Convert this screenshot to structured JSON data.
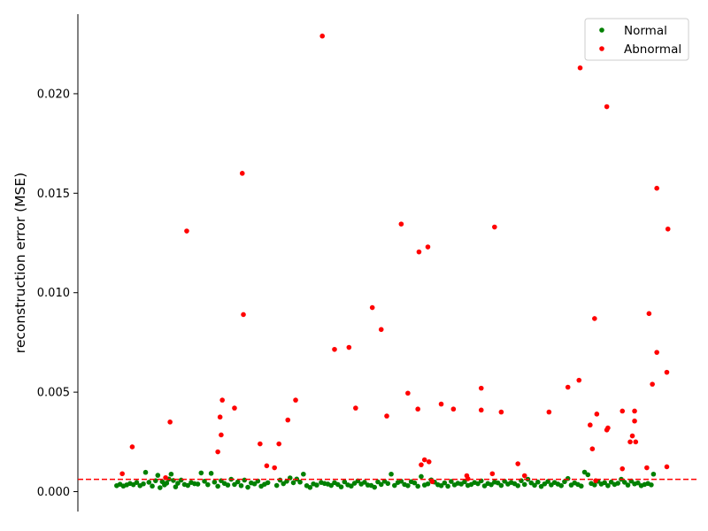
{
  "chart_data": {
    "type": "scatter",
    "title": "",
    "xlabel": "",
    "ylabel": "reconstruction error (MSE)",
    "xlim": [
      -5,
      500
    ],
    "ylim": [
      -0.001,
      0.024
    ],
    "yticks": [
      0.0,
      0.005,
      0.01,
      0.015,
      0.02
    ],
    "ytick_labels": [
      "0.000",
      "0.005",
      "0.010",
      "0.015",
      "0.020"
    ],
    "grid": false,
    "legend_position": "top-right",
    "threshold": {
      "y": 0.00062,
      "style": "dashed",
      "color": "#ff0000"
    },
    "series": [
      {
        "name": "Normal",
        "color": "#008000",
        "points": [
          [
            14,
            0.0003
          ],
          [
            17,
            0.00037
          ],
          [
            20,
            0.00028
          ],
          [
            23,
            0.00034
          ],
          [
            26,
            0.00041
          ],
          [
            29,
            0.00035
          ],
          [
            32,
            0.00046
          ],
          [
            35,
            0.0003
          ],
          [
            38,
            0.00039
          ],
          [
            40,
            0.00097
          ],
          [
            43,
            0.00047
          ],
          [
            46,
            0.00028
          ],
          [
            49,
            0.00055
          ],
          [
            51,
            0.00082
          ],
          [
            53,
            0.0002
          ],
          [
            55,
            0.0005
          ],
          [
            57,
            0.00034
          ],
          [
            59,
            0.00043
          ],
          [
            61,
            0.00063
          ],
          [
            63,
            0.00088
          ],
          [
            65,
            0.00056
          ],
          [
            67,
            0.00024
          ],
          [
            69,
            0.00042
          ],
          [
            72,
            0.00058
          ],
          [
            75,
            0.00036
          ],
          [
            78,
            0.00031
          ],
          [
            81,
            0.00046
          ],
          [
            84,
            0.0004
          ],
          [
            87,
            0.00038
          ],
          [
            90,
            0.00094
          ],
          [
            93,
            0.00052
          ],
          [
            96,
            0.00035
          ],
          [
            99,
            0.00092
          ],
          [
            102,
            0.00048
          ],
          [
            105,
            0.00027
          ],
          [
            108,
            0.00055
          ],
          [
            111,
            0.00041
          ],
          [
            114,
            0.00033
          ],
          [
            117,
            0.00062
          ],
          [
            120,
            0.00036
          ],
          [
            123,
            0.00049
          ],
          [
            126,
            0.0003
          ],
          [
            129,
            0.00058
          ],
          [
            132,
            0.00022
          ],
          [
            135,
            0.00044
          ],
          [
            138,
            0.00039
          ],
          [
            141,
            0.00053
          ],
          [
            144,
            0.00027
          ],
          [
            147,
            0.00037
          ],
          [
            150,
            0.00045
          ],
          [
            158,
            0.00031
          ],
          [
            161,
            0.00058
          ],
          [
            164,
            0.0004
          ],
          [
            167,
            0.00052
          ],
          [
            170,
            0.00069
          ],
          [
            173,
            0.00045
          ],
          [
            176,
            0.00063
          ],
          [
            179,
            0.00048
          ],
          [
            182,
            0.00088
          ],
          [
            185,
            0.0003
          ],
          [
            188,
            0.00021
          ],
          [
            191,
            0.00039
          ],
          [
            194,
            0.00033
          ],
          [
            198,
            0.00046
          ],
          [
            201,
            0.00041
          ],
          [
            204,
            0.00038
          ],
          [
            207,
            0.00031
          ],
          [
            210,
            0.00045
          ],
          [
            213,
            0.00036
          ],
          [
            216,
            0.00024
          ],
          [
            219,
            0.00049
          ],
          [
            222,
            0.00034
          ],
          [
            225,
            0.00028
          ],
          [
            228,
            0.00042
          ],
          [
            231,
            0.00054
          ],
          [
            234,
            0.00038
          ],
          [
            237,
            0.00047
          ],
          [
            240,
            0.00033
          ],
          [
            243,
            0.00031
          ],
          [
            246,
            0.00022
          ],
          [
            249,
            0.00049
          ],
          [
            252,
            0.00036
          ],
          [
            255,
            0.00052
          ],
          [
            258,
            0.00041
          ],
          [
            261,
            0.00088
          ],
          [
            264,
            0.00031
          ],
          [
            267,
            0.00046
          ],
          [
            270,
            0.00052
          ],
          [
            273,
            0.00036
          ],
          [
            276,
            0.0003
          ],
          [
            279,
            0.0005
          ],
          [
            282,
            0.00044
          ],
          [
            285,
            0.00027
          ],
          [
            288,
            0.00076
          ],
          [
            291,
            0.00033
          ],
          [
            294,
            0.00039
          ],
          [
            297,
            0.00059
          ],
          [
            300,
            0.00048
          ],
          [
            303,
            0.00035
          ],
          [
            306,
            0.0003
          ],
          [
            309,
            0.00044
          ],
          [
            312,
            0.00027
          ],
          [
            315,
            0.00051
          ],
          [
            318,
            0.00034
          ],
          [
            321,
            0.00042
          ],
          [
            324,
            0.00038
          ],
          [
            327,
            0.00049
          ],
          [
            330,
            0.00031
          ],
          [
            333,
            0.00036
          ],
          [
            336,
            0.00046
          ],
          [
            339,
            0.0004
          ],
          [
            342,
            0.00054
          ],
          [
            345,
            0.00029
          ],
          [
            348,
            0.00041
          ],
          [
            351,
            0.00035
          ],
          [
            354,
            0.00048
          ],
          [
            357,
            0.00044
          ],
          [
            360,
            0.00031
          ],
          [
            363,
            0.00052
          ],
          [
            366,
            0.00038
          ],
          [
            369,
            0.00046
          ],
          [
            372,
            0.0004
          ],
          [
            375,
            0.0003
          ],
          [
            378,
            0.00055
          ],
          [
            381,
            0.00036
          ],
          [
            384,
            0.00062
          ],
          [
            387,
            0.00044
          ],
          [
            390,
            0.00032
          ],
          [
            393,
            0.00048
          ],
          [
            396,
            0.00026
          ],
          [
            399,
            0.00039
          ],
          [
            402,
            0.00051
          ],
          [
            405,
            0.00034
          ],
          [
            408,
            0.00046
          ],
          [
            411,
            0.00038
          ],
          [
            414,
            0.0003
          ],
          [
            417,
            0.0005
          ],
          [
            420,
            0.00066
          ],
          [
            423,
            0.00033
          ],
          [
            426,
            0.00044
          ],
          [
            429,
            0.00036
          ],
          [
            432,
            0.00028
          ],
          [
            435,
            0.00098
          ],
          [
            438,
            0.00085
          ],
          [
            441,
            0.00041
          ],
          [
            444,
            0.00034
          ],
          [
            447,
            0.00052
          ],
          [
            450,
            0.00038
          ],
          [
            453,
            0.00045
          ],
          [
            456,
            0.0003
          ],
          [
            459,
            0.00048
          ],
          [
            462,
            0.00036
          ],
          [
            465,
            0.00042
          ],
          [
            468,
            0.00062
          ],
          [
            471,
            0.00047
          ],
          [
            474,
            0.00033
          ],
          [
            477,
            0.00053
          ],
          [
            480,
            0.00039
          ],
          [
            483,
            0.00044
          ],
          [
            486,
            0.0003
          ],
          [
            489,
            0.00036
          ],
          [
            492,
            0.00041
          ],
          [
            495,
            0.00034
          ],
          [
            497,
            0.00088
          ]
        ]
      },
      {
        "name": "Abnormal",
        "color": "#ff0000",
        "points": [
          [
            19,
            0.0009
          ],
          [
            28,
            0.00225
          ],
          [
            58,
            0.0007
          ],
          [
            62,
            0.0035
          ],
          [
            77,
            0.0131
          ],
          [
            105,
            0.002
          ],
          [
            107,
            0.00375
          ],
          [
            108,
            0.00285
          ],
          [
            109,
            0.0046
          ],
          [
            120,
            0.0042
          ],
          [
            127,
            0.016
          ],
          [
            128,
            0.0089
          ],
          [
            143,
            0.0024
          ],
          [
            149,
            0.0013
          ],
          [
            156,
            0.0012
          ],
          [
            160,
            0.0024
          ],
          [
            168,
            0.0036
          ],
          [
            175,
            0.0046
          ],
          [
            199,
            0.0229
          ],
          [
            210,
            0.00715
          ],
          [
            223,
            0.00725
          ],
          [
            229,
            0.0042
          ],
          [
            244,
            0.00925
          ],
          [
            252,
            0.00815
          ],
          [
            257,
            0.0038
          ],
          [
            270,
            0.01345
          ],
          [
            276,
            0.00495
          ],
          [
            285,
            0.00415
          ],
          [
            286,
            0.01205
          ],
          [
            288,
            0.00135
          ],
          [
            291,
            0.0016
          ],
          [
            294,
            0.0123
          ],
          [
            295,
            0.0015
          ],
          [
            306,
            0.0044
          ],
          [
            317,
            0.00415
          ],
          [
            329,
            0.0008
          ],
          [
            342,
            0.0052
          ],
          [
            342,
            0.0041
          ],
          [
            352,
            0.0009
          ],
          [
            354,
            0.0133
          ],
          [
            360,
            0.004
          ],
          [
            375,
            0.0014
          ],
          [
            381,
            0.0008
          ],
          [
            403,
            0.004
          ],
          [
            420,
            0.00525
          ],
          [
            430,
            0.0056
          ],
          [
            431,
            0.0213
          ],
          [
            440,
            0.00335
          ],
          [
            442,
            0.00215
          ],
          [
            444,
            0.0087
          ],
          [
            446,
            0.0039
          ],
          [
            455,
            0.0031
          ],
          [
            455,
            0.01935
          ],
          [
            456,
            0.0032
          ],
          [
            469,
            0.00405
          ],
          [
            469,
            0.00115
          ],
          [
            476,
            0.0025
          ],
          [
            478,
            0.0028
          ],
          [
            480,
            0.00355
          ],
          [
            480,
            0.00405
          ],
          [
            481,
            0.0025
          ],
          [
            491,
            0.0012
          ],
          [
            493,
            0.00895
          ],
          [
            496,
            0.0054
          ],
          [
            500,
            0.01525
          ],
          [
            500,
            0.007
          ],
          [
            509,
            0.006
          ],
          [
            509,
            0.00125
          ],
          [
            510,
            0.0132
          ],
          [
            298,
            0.0005
          ],
          [
            330,
            0.00065
          ],
          [
            445,
            0.00055
          ]
        ]
      }
    ]
  }
}
